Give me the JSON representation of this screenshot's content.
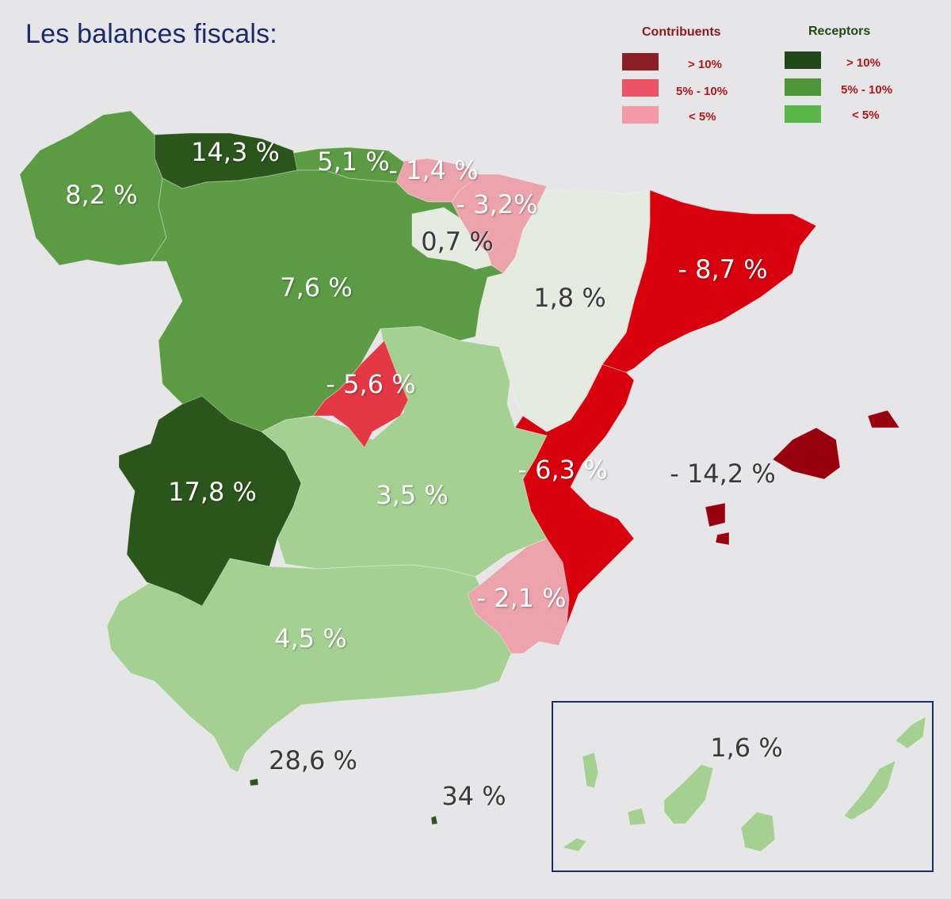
{
  "title": "Les balances fiscals:",
  "legend": {
    "contributors_heading": "Contribuents",
    "receptors_heading": "Receptors",
    "contributors": [
      {
        "label": "> 10%",
        "color": "#8b1d24"
      },
      {
        "label": "5% - 10%",
        "color": "#ea5364"
      },
      {
        "label": "< 5%",
        "color": "#f29aa5"
      }
    ],
    "receptors": [
      {
        "label": "> 10%",
        "color": "#1f4718"
      },
      {
        "label": "5% - 10%",
        "color": "#4e9438"
      },
      {
        "label": "< 5%",
        "color": "#58b847"
      }
    ]
  },
  "regions": [
    {
      "id": "galicia",
      "value": "8,2 %",
      "color": "#5ea046"
    },
    {
      "id": "asturias",
      "value": "14,3 %",
      "color": "#2f5a22"
    },
    {
      "id": "cantabria",
      "value": "5,1 %",
      "color": "#5ea046"
    },
    {
      "id": "pais-basc",
      "value": "- 1,4 %",
      "color": "#f3a8b1"
    },
    {
      "id": "navarra",
      "value": "- 3,2%",
      "color": "#f3a8b1"
    },
    {
      "id": "la-rioja",
      "value": "0,7 %",
      "color": "#ecf1e6"
    },
    {
      "id": "castella-lleo",
      "value": "7,6 %",
      "color": "#5ea046"
    },
    {
      "id": "arago",
      "value": "1,8 %",
      "color": "#ecf1e6"
    },
    {
      "id": "catalunya",
      "value": "- 8,7 %",
      "color": "#df0a12"
    },
    {
      "id": "madrid",
      "value": "- 5,6 %",
      "color": "#ea3b47"
    },
    {
      "id": "extremadura",
      "value": "17,8 %",
      "color": "#2f5a22"
    },
    {
      "id": "castella-la-manxa",
      "value": "3,5 %",
      "color": "#a9d796"
    },
    {
      "id": "comunitat-valenciana",
      "value": "- 6,3 %",
      "color": "#df0a12"
    },
    {
      "id": "illes-balears",
      "value": "- 14,2 %",
      "color": "#9c0a14"
    },
    {
      "id": "murcia",
      "value": "- 2,1 %",
      "color": "#f3a8b1"
    },
    {
      "id": "andalusia",
      "value": "4,5 %",
      "color": "#a9d796"
    },
    {
      "id": "ceuta",
      "value": "28,6 %",
      "color": "#2f5a22"
    },
    {
      "id": "melilla",
      "value": "34 %",
      "color": "#2f5a22"
    },
    {
      "id": "canaries",
      "value": "1,6 %",
      "color": "#a9d796"
    }
  ]
}
